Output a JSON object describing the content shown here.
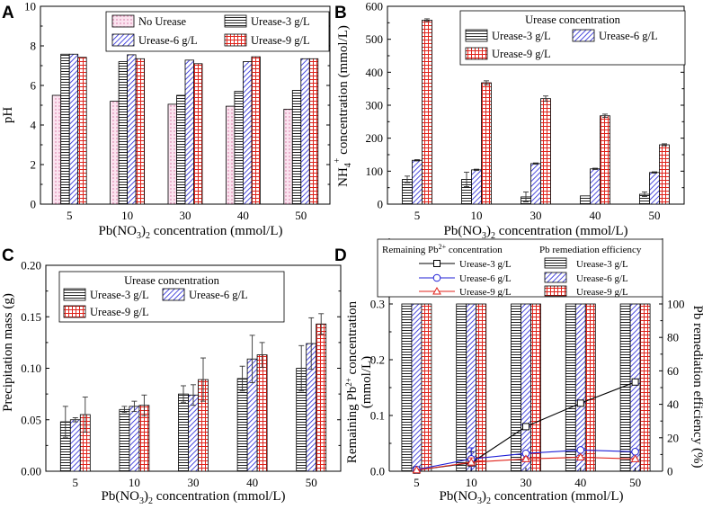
{
  "panels": {
    "A": {
      "label": "A",
      "chart_data": {
        "type": "bar",
        "categories": [
          "5",
          "10",
          "30",
          "40",
          "50"
        ],
        "xlabel": "Pb(NO3)2 concentration (mmol/L)",
        "ylabel": "pH",
        "ylim": [
          0,
          10
        ],
        "yticks": [
          0,
          2,
          4,
          6,
          8,
          10
        ],
        "legend_title": "",
        "series": [
          {
            "name": "No Urease",
            "pattern": "dots",
            "values": [
              5.5,
              5.2,
              5.05,
              4.95,
              4.8
            ],
            "errors": [
              0,
              0,
              0,
              0,
              0
            ]
          },
          {
            "name": "Urease-3 g/L",
            "pattern": "hlines",
            "values": [
              7.58,
              7.2,
              5.5,
              5.7,
              5.75
            ],
            "errors": [
              0,
              0,
              0,
              0,
              0
            ]
          },
          {
            "name": "Urease-6 g/L",
            "pattern": "diag",
            "values": [
              7.58,
              7.55,
              7.28,
              7.2,
              7.35
            ],
            "errors": [
              0,
              0,
              0,
              0,
              0
            ]
          },
          {
            "name": "Urease-9 g/L",
            "pattern": "grid",
            "values": [
              7.42,
              7.35,
              7.1,
              7.45,
              7.35
            ],
            "errors": [
              0,
              0,
              0,
              0,
              0
            ]
          }
        ]
      }
    },
    "B": {
      "label": "B",
      "chart_data": {
        "type": "bar",
        "categories": [
          "5",
          "10",
          "30",
          "40",
          "50"
        ],
        "xlabel": "Pb(NO3)2 concentration (mmol/L)",
        "ylabel": "NH4+ concentration (mmol/L)",
        "ylim": [
          0,
          600
        ],
        "yticks": [
          0,
          100,
          200,
          300,
          400,
          500,
          600
        ],
        "legend_title": "Urease concentration",
        "series": [
          {
            "name": "Urease-3 g/L",
            "pattern": "hlines",
            "values": [
              75,
              75,
              22,
              25,
              30
            ],
            "errors": [
              10,
              22,
              15,
              0,
              7
            ]
          },
          {
            "name": "Urease-6 g/L",
            "pattern": "diag",
            "values": [
              133,
              104,
              123,
              107,
              96
            ],
            "errors": [
              2,
              2,
              2,
              2,
              2
            ]
          },
          {
            "name": "Urease-9 g/L",
            "pattern": "grid",
            "values": [
              558,
              368,
              320,
              268,
              180
            ],
            "errors": [
              4,
              6,
              8,
              5,
              3
            ]
          }
        ]
      }
    },
    "C": {
      "label": "C",
      "chart_data": {
        "type": "bar",
        "categories": [
          "5",
          "10",
          "30",
          "40",
          "50"
        ],
        "xlabel": "Pb(NO3)2 concentration (mmol/L)",
        "ylabel": "Precipitation mass (g)",
        "ylim": [
          0,
          0.2
        ],
        "yticks": [
          "0.00",
          "0.05",
          "0.10",
          "0.15",
          "0.20"
        ],
        "legend_title": "Urease concentration",
        "series": [
          {
            "name": "Urease-3 g/L",
            "pattern": "hlines",
            "values": [
              0.048,
              0.06,
              0.075,
              0.09,
              0.1
            ],
            "errors": [
              0.015,
              0.003,
              0.008,
              0.012,
              0.022
            ]
          },
          {
            "name": "Urease-6 g/L",
            "pattern": "diag",
            "values": [
              0.05,
              0.063,
              0.074,
              0.109,
              0.124
            ],
            "errors": [
              0.002,
              0.005,
              0.01,
              0.023,
              0.025
            ]
          },
          {
            "name": "Urease-9 g/L",
            "pattern": "grid",
            "values": [
              0.055,
              0.064,
              0.089,
              0.113,
              0.143
            ],
            "errors": [
              0.017,
              0.01,
              0.021,
              0.012,
              0.01
            ]
          }
        ]
      }
    },
    "D": {
      "label": "D",
      "chart_data": {
        "type": "bar",
        "categories": [
          "5",
          "10",
          "30",
          "40",
          "50"
        ],
        "xlabel": "Pb(NO3)2 concentration (mmol/L)",
        "ylabel": "Remaining Pb2+ concentration (mmol/L)",
        "y2label": "Pb remediation efficiency (%)",
        "ylim": [
          0,
          0.3
        ],
        "yticks": [
          "0.0",
          "0.1",
          "0.2",
          "0.3"
        ],
        "y2lim": [
          0,
          100
        ],
        "y2ticks": [
          0,
          20,
          40,
          60,
          80,
          100
        ],
        "legend_left_title": "Remaining Pb2+ concentration",
        "legend_right_title": "Pb remediation efficiency",
        "bar_series": [
          {
            "name": "Urease-3 g/L",
            "pattern": "hlines",
            "values": [
              100,
              100,
              100,
              100,
              100
            ]
          },
          {
            "name": "Urease-6 g/L",
            "pattern": "diag",
            "values": [
              100,
              100,
              100,
              100,
              100
            ]
          },
          {
            "name": "Urease-9 g/L",
            "pattern": "grid",
            "values": [
              100,
              100,
              100,
              100,
              100
            ]
          }
        ],
        "line_series": [
          {
            "name": "Urease-3 g/L",
            "marker": "square",
            "color": "#000000",
            "values": [
              0.002,
              0.015,
              0.08,
              0.122,
              0.16
            ],
            "errors": [
              0.003,
              0.02,
              0.005,
              0.005,
              0.003
            ]
          },
          {
            "name": "Urease-6 g/L",
            "marker": "circle",
            "color": "#1f1fd6",
            "values": [
              0.003,
              0.022,
              0.032,
              0.038,
              0.035
            ],
            "errors": [
              0.003,
              0.02,
              0.004,
              0.004,
              0.004
            ]
          },
          {
            "name": "Urease-9 g/L",
            "marker": "triangle",
            "color": "#e0231b",
            "values": [
              0.002,
              0.016,
              0.022,
              0.025,
              0.022
            ],
            "errors": [
              0.002,
              0.008,
              0.003,
              0.003,
              0.002
            ]
          }
        ]
      }
    }
  },
  "axis_text": {
    "x_prefix": "Pb(NO",
    "x_sub": "3",
    "x_close": ")",
    "x_sub2": "2",
    "x_suffix": " concentration (mmol/L)",
    "nh4_prefix": "NH",
    "nh4_sub": "4",
    "nh4_sup": "+",
    "nh4_suffix": " concentration (mmol/L)",
    "rem_prefix": "Remaining Pb",
    "rem_sup": "2+",
    "rem_suffix": " concentration",
    "rem_line2": "(mmol/L)",
    "leg_rem_prefix": "Remaining Pb",
    "leg_rem_sup": "2+",
    "leg_rem_suffix": " concentration"
  }
}
